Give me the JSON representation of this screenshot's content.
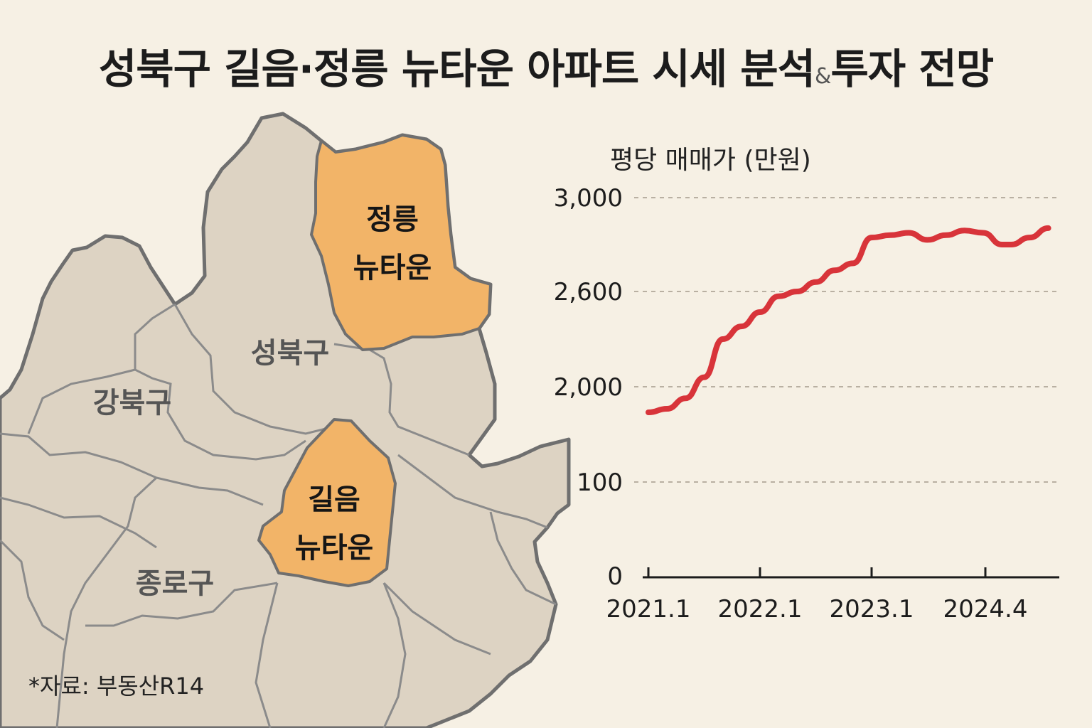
{
  "title": {
    "part1": "성북구 길음·정릉 뉴타운 아파트 시세 분석",
    "amp": "&",
    "part2": "투자 전망"
  },
  "map": {
    "districts": [
      "성북구",
      "강북구",
      "종로구"
    ],
    "jeongneung": {
      "line1": "정릉",
      "line2": "뉴타운",
      "color": "#f2b468"
    },
    "gireum": {
      "line1": "길음",
      "line2": "뉴타운",
      "color": "#f2b468"
    },
    "base_color": "#ddd3c3",
    "border_color": "#6f6f6f"
  },
  "source": "*자료: 부동산R14",
  "chart_data": {
    "type": "line",
    "ylabel": "평당 매매가 (만원)",
    "y_ticks": [
      "3,000",
      "2,600",
      "2,000",
      "100",
      "0"
    ],
    "x_ticks": [
      "2021.1",
      "2022.1",
      "2023.1",
      "2024.4"
    ],
    "grid": "dashed-horizontal",
    "line_color": "#d8343a",
    "series": [
      {
        "values": [
          {
            "x": "2021.1",
            "y": 1490
          },
          {
            "x": "2021.3",
            "y": 1560
          },
          {
            "x": "2021.5",
            "y": 1770
          },
          {
            "x": "2021.7",
            "y": 2060
          },
          {
            "x": "2021.9",
            "y": 2300
          },
          {
            "x": "2021.11",
            "y": 2380
          },
          {
            "x": "2022.1",
            "y": 2470
          },
          {
            "x": "2022.3",
            "y": 2570
          },
          {
            "x": "2022.5",
            "y": 2600
          },
          {
            "x": "2022.7",
            "y": 2640
          },
          {
            "x": "2022.9",
            "y": 2690
          },
          {
            "x": "2022.11",
            "y": 2720
          },
          {
            "x": "2023.1",
            "y": 2830
          },
          {
            "x": "2023.3",
            "y": 2840
          },
          {
            "x": "2023.5",
            "y": 2850
          },
          {
            "x": "2023.7",
            "y": 2820
          },
          {
            "x": "2023.9",
            "y": 2840
          },
          {
            "x": "2023.11",
            "y": 2860
          },
          {
            "x": "2024.1",
            "y": 2850
          },
          {
            "x": "2024.3",
            "y": 2800
          },
          {
            "x": "2024.4",
            "y": 2800
          },
          {
            "x": "2024.6",
            "y": 2830
          },
          {
            "x": "2024.8",
            "y": 2870
          }
        ]
      }
    ]
  }
}
